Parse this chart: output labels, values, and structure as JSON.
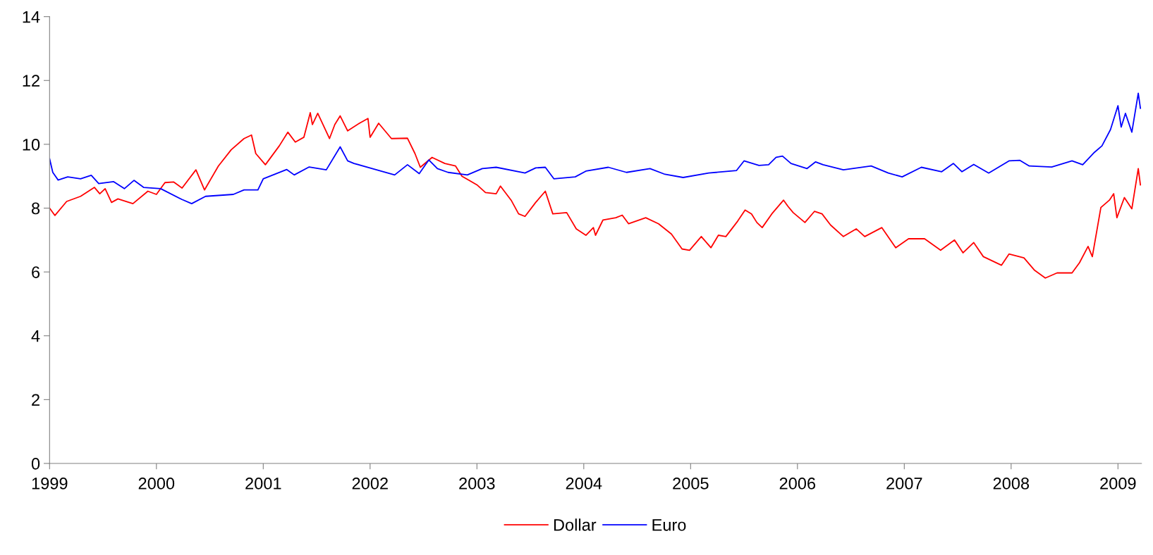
{
  "chart_data": {
    "type": "line",
    "xlim": [
      1999,
      2009.22
    ],
    "xticks": [
      1999,
      2000,
      2001,
      2002,
      2003,
      2004,
      2005,
      2006,
      2007,
      2008,
      2009
    ],
    "ylim": [
      0,
      14
    ],
    "yticks": [
      0,
      2,
      4,
      6,
      8,
      10,
      12,
      14
    ],
    "grid": false,
    "legend": "bottom",
    "marker": "none",
    "line_style": "solid",
    "series": [
      {
        "name": "Dollar",
        "color": "#ff0000",
        "x": [
          1999.0,
          1999.05,
          1999.16,
          1999.29,
          1999.42,
          1999.47,
          1999.52,
          1999.58,
          1999.64,
          1999.78,
          1999.92,
          2000.0,
          2000.08,
          2000.16,
          2000.24,
          2000.37,
          2000.45,
          2000.58,
          2000.7,
          2000.82,
          2000.89,
          2000.93,
          2001.02,
          2001.15,
          2001.23,
          2001.3,
          2001.38,
          2001.44,
          2001.46,
          2001.51,
          2001.62,
          2001.67,
          2001.72,
          2001.79,
          2001.9,
          2001.98,
          2002.0,
          2002.08,
          2002.2,
          2002.35,
          2002.42,
          2002.47,
          2002.58,
          2002.7,
          2002.8,
          2002.86,
          2003.0,
          2003.08,
          2003.18,
          2003.22,
          2003.32,
          2003.39,
          2003.45,
          2003.55,
          2003.64,
          2003.71,
          2003.84,
          2003.93,
          2004.02,
          2004.09,
          2004.11,
          2004.18,
          2004.3,
          2004.36,
          2004.42,
          2004.58,
          2004.7,
          2004.82,
          2004.92,
          2004.99,
          2005.1,
          2005.19,
          2005.26,
          2005.33,
          2005.44,
          2005.51,
          2005.57,
          2005.62,
          2005.67,
          2005.76,
          2005.87,
          2005.91,
          2005.96,
          2006.07,
          2006.16,
          2006.23,
          2006.31,
          2006.43,
          2006.55,
          2006.63,
          2006.79,
          2006.92,
          2007.04,
          2007.19,
          2007.34,
          2007.47,
          2007.55,
          2007.65,
          2007.74,
          2007.91,
          2007.98,
          2008.12,
          2008.22,
          2008.32,
          2008.43,
          2008.57,
          2008.64,
          2008.72,
          2008.76,
          2008.84,
          2008.92,
          2008.96,
          2008.99,
          2009.06,
          2009.13,
          2009.19,
          2009.21
        ],
        "values": [
          8.0,
          7.77,
          8.21,
          8.37,
          8.65,
          8.45,
          8.61,
          8.18,
          8.29,
          8.14,
          8.53,
          8.43,
          8.8,
          8.82,
          8.63,
          9.2,
          8.57,
          9.32,
          9.83,
          10.18,
          10.29,
          9.71,
          9.36,
          9.95,
          10.38,
          10.07,
          10.22,
          10.99,
          10.62,
          10.97,
          10.18,
          10.62,
          10.89,
          10.42,
          10.66,
          10.81,
          10.22,
          10.66,
          10.18,
          10.19,
          9.71,
          9.28,
          9.59,
          9.4,
          9.32,
          9.0,
          8.73,
          8.49,
          8.45,
          8.69,
          8.25,
          7.82,
          7.74,
          8.18,
          8.53,
          7.82,
          7.86,
          7.35,
          7.15,
          7.39,
          7.15,
          7.63,
          7.7,
          7.78,
          7.51,
          7.7,
          7.51,
          7.19,
          6.72,
          6.68,
          7.11,
          6.76,
          7.15,
          7.11,
          7.59,
          7.94,
          7.82,
          7.55,
          7.39,
          7.82,
          8.25,
          8.06,
          7.86,
          7.55,
          7.9,
          7.82,
          7.47,
          7.11,
          7.35,
          7.11,
          7.39,
          6.76,
          7.04,
          7.04,
          6.68,
          7.0,
          6.6,
          6.92,
          6.48,
          6.21,
          6.56,
          6.44,
          6.05,
          5.81,
          5.97,
          5.97,
          6.29,
          6.8,
          6.48,
          8.02,
          8.25,
          8.45,
          7.7,
          8.33,
          7.98,
          9.24,
          8.73
        ]
      },
      {
        "name": "Euro",
        "color": "#0000ff",
        "x": [
          1999.0,
          1999.03,
          1999.08,
          1999.17,
          1999.29,
          1999.39,
          1999.46,
          1999.6,
          1999.7,
          1999.79,
          1999.88,
          2000.04,
          2000.24,
          2000.33,
          2000.46,
          2000.72,
          2000.82,
          2000.95,
          2001.0,
          2001.22,
          2001.29,
          2001.43,
          2001.59,
          2001.72,
          2001.79,
          2001.85,
          2002.02,
          2002.23,
          2002.35,
          2002.46,
          2002.55,
          2002.63,
          2002.73,
          2002.91,
          2003.05,
          2003.18,
          2003.45,
          2003.55,
          2003.64,
          2003.72,
          2003.92,
          2004.02,
          2004.23,
          2004.4,
          2004.62,
          2004.76,
          2004.93,
          2005.17,
          2005.43,
          2005.5,
          2005.64,
          2005.73,
          2005.8,
          2005.86,
          2005.94,
          2006.09,
          2006.17,
          2006.24,
          2006.43,
          2006.69,
          2006.85,
          2006.98,
          2007.16,
          2007.35,
          2007.46,
          2007.54,
          2007.65,
          2007.79,
          2007.98,
          2008.08,
          2008.17,
          2008.38,
          2008.57,
          2008.67,
          2008.78,
          2008.85,
          2008.93,
          2009.0,
          2009.03,
          2009.07,
          2009.13,
          2009.19,
          2009.21
        ],
        "values": [
          9.55,
          9.12,
          8.88,
          8.98,
          8.92,
          9.03,
          8.77,
          8.83,
          8.61,
          8.87,
          8.65,
          8.61,
          8.27,
          8.14,
          8.37,
          8.43,
          8.57,
          8.57,
          8.92,
          9.21,
          9.04,
          9.29,
          9.2,
          9.92,
          9.48,
          9.4,
          9.24,
          9.04,
          9.36,
          9.08,
          9.51,
          9.24,
          9.12,
          9.04,
          9.24,
          9.28,
          9.1,
          9.26,
          9.28,
          8.92,
          8.98,
          9.16,
          9.28,
          9.12,
          9.24,
          9.06,
          8.96,
          9.1,
          9.18,
          9.48,
          9.34,
          9.36,
          9.59,
          9.63,
          9.4,
          9.24,
          9.45,
          9.36,
          9.2,
          9.32,
          9.1,
          8.98,
          9.28,
          9.14,
          9.4,
          9.14,
          9.37,
          9.1,
          9.48,
          9.5,
          9.32,
          9.29,
          9.48,
          9.36,
          9.75,
          9.95,
          10.46,
          11.21,
          10.54,
          10.97,
          10.38,
          11.6,
          11.13
        ]
      }
    ]
  }
}
